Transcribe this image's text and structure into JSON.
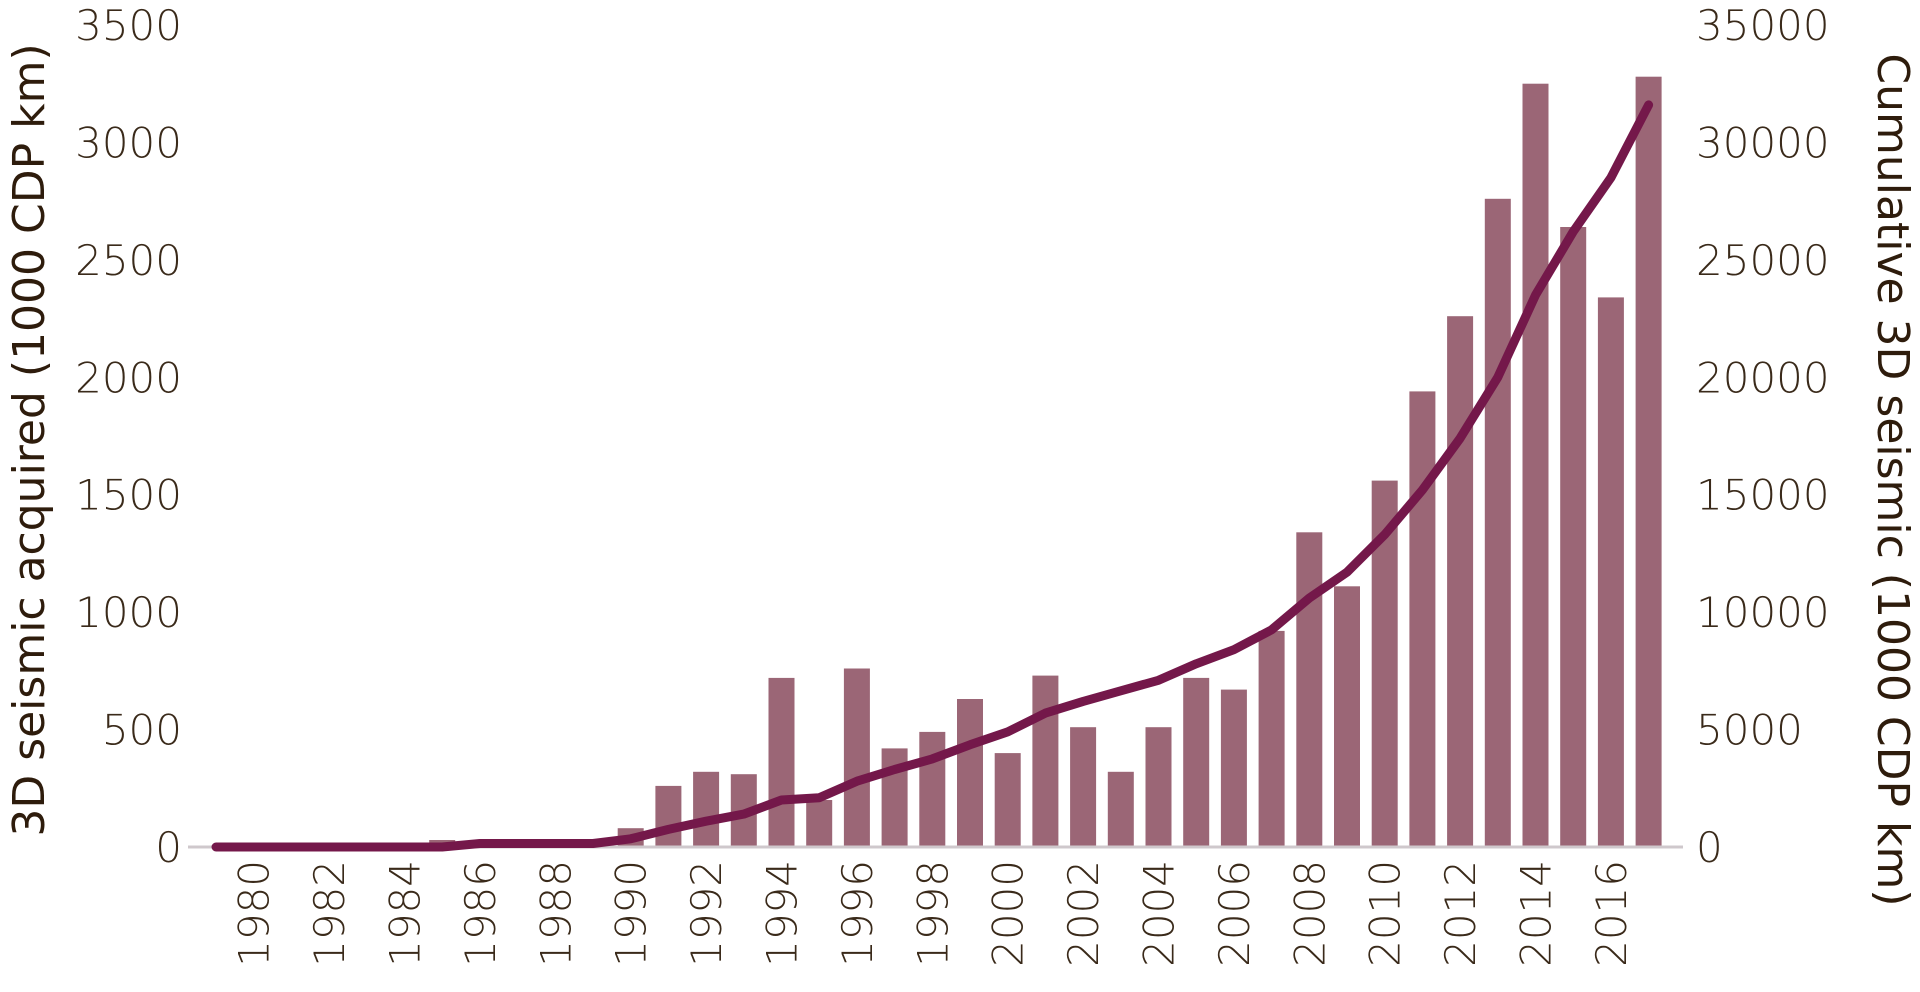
{
  "chart_data": {
    "type": "bar",
    "title": "",
    "xlabel": "",
    "ylabel": "3D seismic acquired (1000 CDP km)",
    "y2label": "Cumulative 3D seismic (1000 CDP km)",
    "ylim": [
      0,
      3500
    ],
    "y2lim": [
      0,
      35000
    ],
    "y_ticks": [
      "0",
      "500",
      "1000",
      "1500",
      "2000",
      "2500",
      "3000",
      "3500"
    ],
    "y2_ticks": [
      "0",
      "5000",
      "10000",
      "15000",
      "20000",
      "25000",
      "30000",
      "35000"
    ],
    "x_tick_labels": [
      "1980",
      "1982",
      "1984",
      "1986",
      "1988",
      "1990",
      "1992",
      "1994",
      "1996",
      "1998",
      "2000",
      "2002",
      "2004",
      "2006",
      "2008",
      "2010",
      "2012",
      "2014",
      "2016"
    ],
    "categories": [
      1979,
      1980,
      1981,
      1982,
      1983,
      1984,
      1985,
      1986,
      1987,
      1988,
      1989,
      1990,
      1991,
      1992,
      1993,
      1994,
      1995,
      1996,
      1997,
      1998,
      1999,
      2000,
      2001,
      2002,
      2003,
      2004,
      2005,
      2006,
      2007,
      2008,
      2009,
      2010,
      2011,
      2012,
      2013,
      2014,
      2015,
      2016,
      2017
    ],
    "series": [
      {
        "type": "bar",
        "axis": "left",
        "color": "#9b6676",
        "values": [
          0,
          0,
          0,
          0,
          0,
          0,
          30,
          5,
          10,
          15,
          20,
          80,
          260,
          320,
          310,
          720,
          200,
          760,
          420,
          490,
          630,
          400,
          730,
          510,
          320,
          510,
          720,
          670,
          920,
          1340,
          1110,
          1560,
          1940,
          2260,
          2760,
          3250,
          2640,
          2340,
          3280
        ]
      },
      {
        "type": "line",
        "axis": "right",
        "color": "#74184a",
        "values": [
          0,
          0,
          0,
          0,
          0,
          0,
          0,
          150,
          150,
          150,
          150,
          350,
          750,
          1100,
          1400,
          2000,
          2100,
          2800,
          3300,
          3750,
          4350,
          4900,
          5700,
          6200,
          6650,
          7100,
          7800,
          8400,
          9250,
          10600,
          11700,
          13300,
          15200,
          17400,
          20000,
          23500,
          26200,
          28500,
          31600
        ]
      }
    ]
  }
}
